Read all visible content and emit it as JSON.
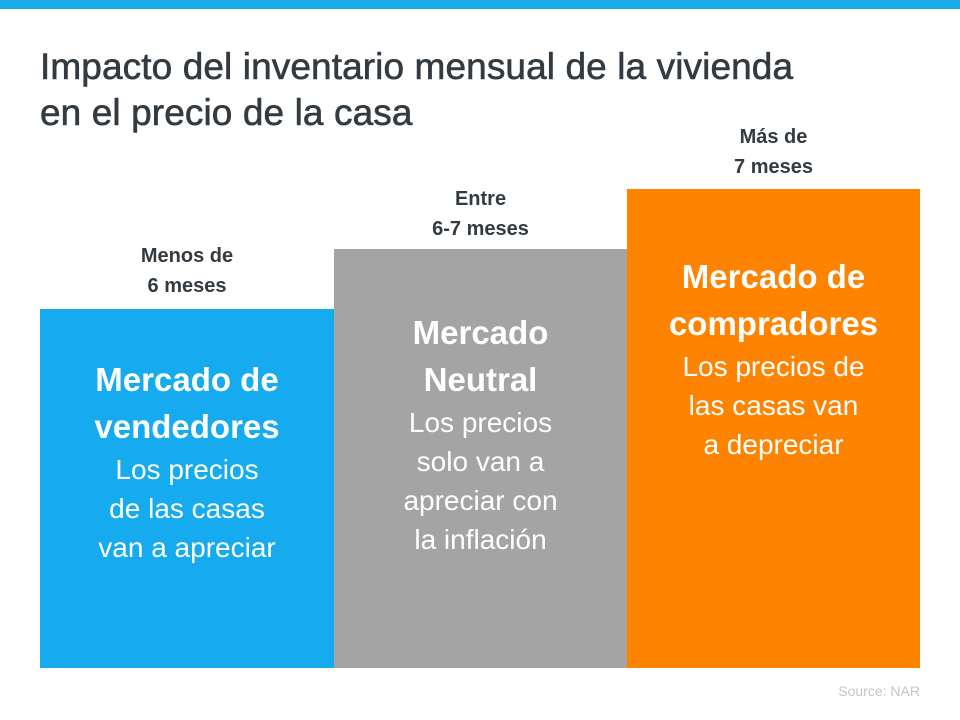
{
  "title_lines": [
    "Impacto del inventario mensual de la vivienda",
    "en el precio de la casa"
  ],
  "colors": {
    "accent_bar": "#1aabe9",
    "sellers": "#15abee",
    "neutral": "#a4a4a4",
    "buyers": "#fe8300",
    "text": "#333a40"
  },
  "columns": [
    {
      "label_lines": [
        "Menos de",
        "6 meses"
      ],
      "heading_lines": [
        "Mercado de",
        "vendedores"
      ],
      "body_lines": [
        "Los precios",
        "de las casas",
        "van a apreciar"
      ]
    },
    {
      "label_lines": [
        "Entre",
        "6-7 meses"
      ],
      "heading_lines": [
        "Mercado",
        "Neutral"
      ],
      "body_lines": [
        "Los precios",
        "solo van a",
        "apreciar con",
        "la inflación"
      ]
    },
    {
      "label_lines": [
        "Más de",
        "7 meses"
      ],
      "heading_lines": [
        "Mercado de",
        "compradores"
      ],
      "body_lines": [
        "Los precios de",
        "las casas van",
        "a depreciar"
      ]
    }
  ],
  "source": "Source: NAR"
}
